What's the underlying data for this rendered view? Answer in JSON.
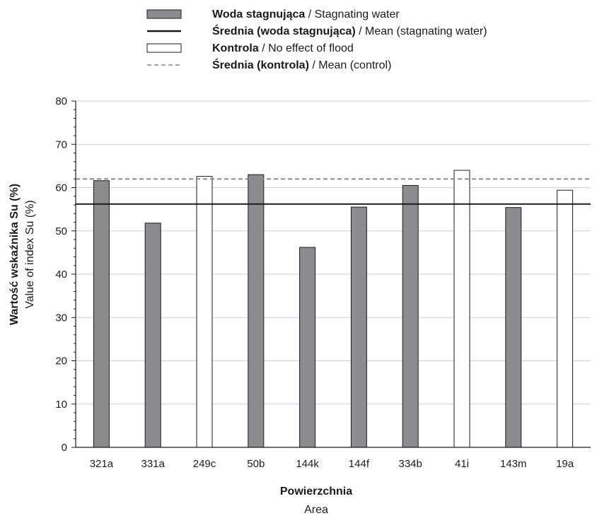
{
  "chart_data": {
    "type": "bar",
    "categories": [
      "321a",
      "331a",
      "249c",
      "50b",
      "144k",
      "144f",
      "334b",
      "41i",
      "143m",
      "19a"
    ],
    "values": [
      61.6,
      51.8,
      62.6,
      63.0,
      46.2,
      55.5,
      60.5,
      64.0,
      55.4,
      59.4
    ],
    "groups": [
      "stagnating",
      "stagnating",
      "control",
      "stagnating",
      "stagnating",
      "stagnating",
      "stagnating",
      "control",
      "stagnating",
      "control"
    ],
    "means": {
      "stagnating": 56.2,
      "control": 62.0
    },
    "ylim": [
      0,
      80
    ],
    "yticks": [
      0,
      10,
      20,
      30,
      40,
      50,
      60,
      70,
      80
    ],
    "ylabel_pl": "Wartość wskaźnika Su (%)",
    "ylabel_en": "Value of index Su (%)",
    "xlabel_pl": "Powierzchnia",
    "xlabel_en": "Area",
    "grid": true,
    "legend_placement": "top-center",
    "legend": [
      {
        "key": "stagnating",
        "bold": "Woda stagnująca",
        "rest": " / Stagnating water"
      },
      {
        "key": "stagnating_mean",
        "bold": "Średnia (woda stagnująca)",
        "rest": " / Mean (stagnating water)"
      },
      {
        "key": "control",
        "bold": "Kontrola",
        "rest": " / No effect of flood"
      },
      {
        "key": "control_mean",
        "bold": "Średnia (kontrola)",
        "rest": " / Mean (control)"
      }
    ],
    "colors": {
      "stagnating": "#8c8c8f",
      "control": "#ffffff",
      "outline": "#1a1a1a",
      "stagnating_mean": "#1a1a1a",
      "control_mean": "#8a8a8a",
      "grid": "#cfcfcf"
    }
  }
}
